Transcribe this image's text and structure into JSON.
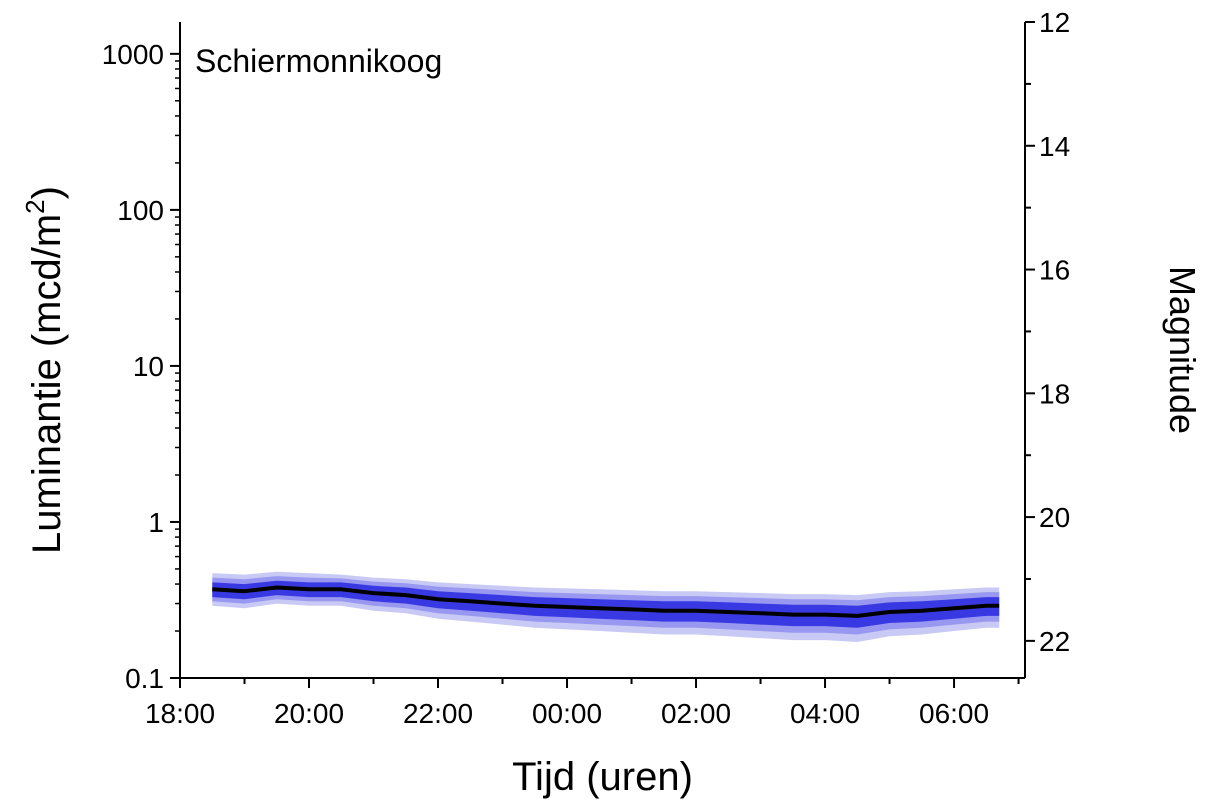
{
  "chart_data": {
    "type": "line",
    "annotation": "Schiermonnikoog",
    "xlabel": "Tijd (uren)",
    "ylabel": "Luminantie (mcd/m²)",
    "ylabel_main": "Luminantie (mcd/m",
    "ylabel_sup": "2",
    "ylabel_close": ")",
    "y2label": "Magnitude",
    "x_tick_labels": [
      "18:00",
      "20:00",
      "22:00",
      "00:00",
      "02:00",
      "04:00",
      "06:00"
    ],
    "y_tick_labels": [
      "0.1",
      "1",
      "10",
      "100",
      "1000"
    ],
    "y2_tick_labels": [
      "12",
      "14",
      "16",
      "18",
      "20",
      "22"
    ],
    "x_range_hours": [
      18.0,
      31.1
    ],
    "ylim": [
      0.1,
      1600
    ],
    "yscale": "log",
    "y2lim": [
      12,
      22.6
    ],
    "grid": false,
    "band_color": "#8f8ff0",
    "band_color_light": "#bcbcf2",
    "band_color_dark": "#2828e0",
    "line_color": "#000000",
    "series_median": {
      "x": [
        18.5,
        19.0,
        19.5,
        20.0,
        20.5,
        21.0,
        21.5,
        22.0,
        22.5,
        23.0,
        23.5,
        24.0,
        24.5,
        25.0,
        25.5,
        26.0,
        26.5,
        27.0,
        27.5,
        28.0,
        28.5,
        29.0,
        29.5,
        30.0,
        30.5,
        30.7
      ],
      "y": [
        0.37,
        0.36,
        0.38,
        0.37,
        0.37,
        0.35,
        0.34,
        0.32,
        0.31,
        0.3,
        0.29,
        0.285,
        0.28,
        0.275,
        0.27,
        0.27,
        0.265,
        0.26,
        0.255,
        0.255,
        0.25,
        0.265,
        0.27,
        0.28,
        0.29,
        0.29
      ]
    },
    "band_inner_low": [
      0.33,
      0.32,
      0.34,
      0.33,
      0.33,
      0.31,
      0.3,
      0.28,
      0.27,
      0.26,
      0.25,
      0.245,
      0.24,
      0.235,
      0.23,
      0.23,
      0.225,
      0.22,
      0.215,
      0.215,
      0.21,
      0.225,
      0.23,
      0.24,
      0.25,
      0.25
    ],
    "band_inner_high": [
      0.41,
      0.4,
      0.42,
      0.41,
      0.41,
      0.39,
      0.38,
      0.36,
      0.35,
      0.34,
      0.33,
      0.325,
      0.32,
      0.315,
      0.31,
      0.31,
      0.305,
      0.3,
      0.295,
      0.295,
      0.29,
      0.305,
      0.31,
      0.32,
      0.33,
      0.33
    ],
    "band_outer_low": [
      0.29,
      0.28,
      0.3,
      0.29,
      0.29,
      0.27,
      0.26,
      0.24,
      0.23,
      0.22,
      0.21,
      0.205,
      0.2,
      0.195,
      0.19,
      0.19,
      0.185,
      0.18,
      0.175,
      0.175,
      0.17,
      0.185,
      0.19,
      0.2,
      0.21,
      0.21
    ],
    "band_outer_high": [
      0.47,
      0.46,
      0.48,
      0.47,
      0.46,
      0.44,
      0.43,
      0.41,
      0.4,
      0.39,
      0.38,
      0.375,
      0.37,
      0.365,
      0.36,
      0.36,
      0.355,
      0.35,
      0.345,
      0.345,
      0.34,
      0.355,
      0.36,
      0.37,
      0.38,
      0.38
    ]
  }
}
